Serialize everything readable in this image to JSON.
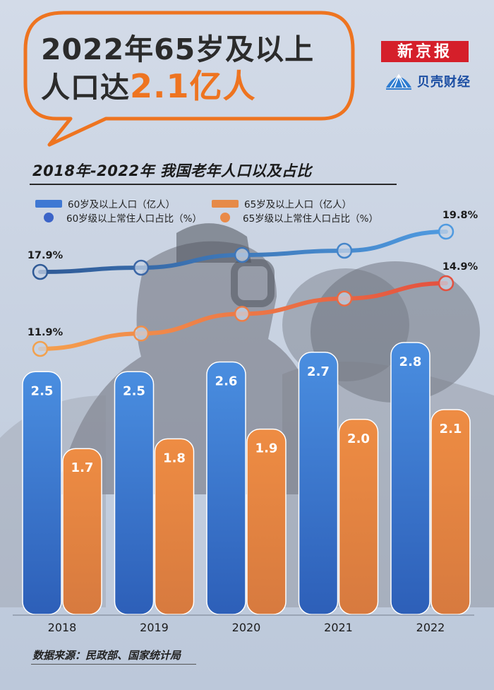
{
  "headline": {
    "line1": "2022年65岁及以上",
    "line2_prefix": "人口达",
    "line2_highlight": "2.1亿人"
  },
  "brand": {
    "name": "新京报",
    "sub": "贝壳财经"
  },
  "colors": {
    "accent": "#ee7420",
    "blue_bar": "#3f7fd0",
    "orange_bar": "#e0823f",
    "blue_line": "#3e6fb0",
    "orange_line": "#eb6a45"
  },
  "chart_data": {
    "type": "bar",
    "title": "2018年-2022年 我国老年人口以及占比",
    "categories": [
      "2018",
      "2019",
      "2020",
      "2021",
      "2022"
    ],
    "series": [
      {
        "name": "60岁及以上人口（亿人）",
        "type": "bar",
        "values": [
          2.5,
          2.5,
          2.6,
          2.7,
          2.8
        ],
        "labels": [
          "2.5",
          "2.5",
          "2.6",
          "2.7",
          "2.8"
        ]
      },
      {
        "name": "65岁及以上人口（亿人）",
        "type": "bar",
        "values": [
          1.7,
          1.8,
          1.9,
          2.0,
          2.1
        ],
        "labels": [
          "1.7",
          "1.8",
          "1.9",
          "2.0",
          "2.1"
        ]
      },
      {
        "name": "60岁级以上常住人口占比（%）",
        "type": "line",
        "values": [
          17.9,
          18.1,
          18.7,
          18.9,
          19.8
        ],
        "end_labels": [
          "17.9%",
          "19.8%"
        ]
      },
      {
        "name": "65岁级以上常住人口占比（%）",
        "type": "line",
        "values": [
          11.9,
          12.6,
          13.5,
          14.2,
          14.9
        ],
        "end_labels": [
          "11.9%",
          "14.9%"
        ]
      }
    ],
    "ylim": [
      0,
      3.2
    ],
    "ylim_pct": [
      0,
      22
    ],
    "grid": false
  },
  "source": "数据来源：民政部、国家统计局"
}
